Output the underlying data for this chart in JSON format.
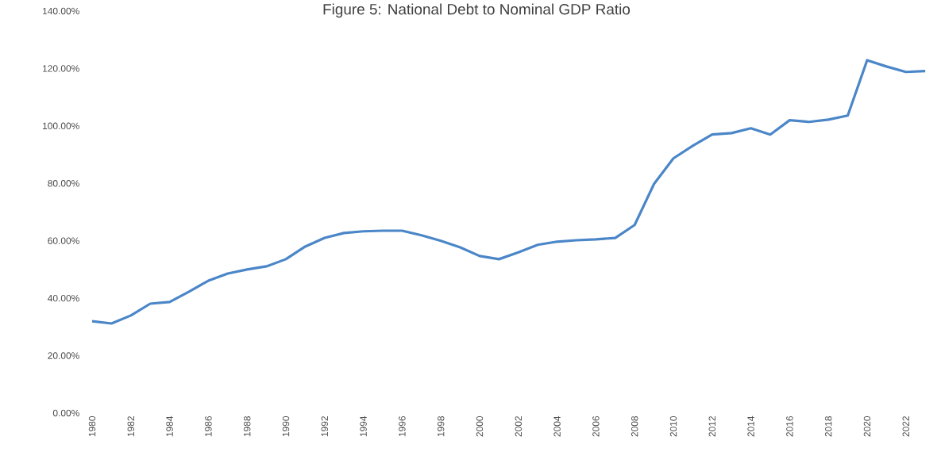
{
  "chart_data": {
    "type": "line",
    "title": "Figure 5:  National Debt to Nominal GDP Ratio",
    "categories": [
      "1980",
      null,
      "1982",
      null,
      "1984",
      null,
      "1986",
      null,
      "1988",
      null,
      "1990",
      null,
      "1992",
      null,
      "1994",
      null,
      "1996",
      null,
      "1998",
      null,
      "2000",
      null,
      "2002",
      null,
      "2004",
      null,
      "2006",
      null,
      "2008",
      null,
      "2010",
      null,
      "2012",
      null,
      "2014",
      null,
      "2016",
      null,
      "2018",
      null,
      "2020",
      null,
      "2022",
      null
    ],
    "values": [
      32.0,
      31.2,
      34.0,
      38.1,
      38.7,
      42.3,
      46.1,
      48.6,
      50.0,
      51.1,
      53.6,
      58.0,
      61.0,
      62.7,
      63.3,
      63.5,
      63.5,
      61.9,
      60.0,
      57.7,
      54.7,
      53.6,
      56.0,
      58.6,
      59.7,
      60.2,
      60.5,
      61.0,
      65.5,
      79.8,
      88.7,
      93.1,
      97.0,
      97.5,
      99.2,
      97.0,
      102.0,
      101.4,
      102.2,
      103.6,
      122.9,
      120.7,
      118.8,
      119.1
    ],
    "color": "#4a86c8",
    "ylim": [
      0,
      140
    ],
    "yticks": [
      {
        "value": 0,
        "label": "0.00%"
      },
      {
        "value": 20,
        "label": "20.00%"
      },
      {
        "value": 40,
        "label": "40.00%"
      },
      {
        "value": 60,
        "label": "60.00%"
      },
      {
        "value": 80,
        "label": "80.00%"
      },
      {
        "value": 100,
        "label": "100.00%"
      },
      {
        "value": 120,
        "label": "120.00%"
      },
      {
        "value": 140,
        "label": "140.00%"
      }
    ],
    "marker": "none"
  }
}
